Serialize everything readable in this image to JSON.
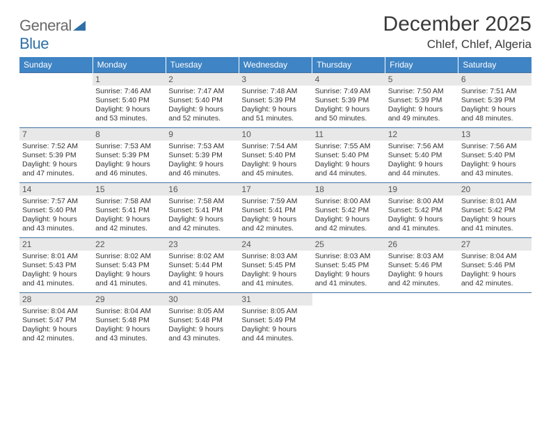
{
  "brand": {
    "name_a": "General",
    "name_b": "Blue"
  },
  "title": "December 2025",
  "location": "Chlef, Chlef, Algeria",
  "colors": {
    "header_bg": "#3f84c4",
    "header_text": "#ffffff",
    "daynum_bg": "#e8e8e8",
    "rule": "#3f6fa0",
    "text": "#333333",
    "logo_gray": "#6a6a6a",
    "logo_blue": "#2f6fa7"
  },
  "weekdays": [
    "Sunday",
    "Monday",
    "Tuesday",
    "Wednesday",
    "Thursday",
    "Friday",
    "Saturday"
  ],
  "weeks": [
    [
      {
        "n": "",
        "sr": "",
        "ss": "",
        "dl": ""
      },
      {
        "n": "1",
        "sr": "Sunrise: 7:46 AM",
        "ss": "Sunset: 5:40 PM",
        "dl": "Daylight: 9 hours and 53 minutes."
      },
      {
        "n": "2",
        "sr": "Sunrise: 7:47 AM",
        "ss": "Sunset: 5:40 PM",
        "dl": "Daylight: 9 hours and 52 minutes."
      },
      {
        "n": "3",
        "sr": "Sunrise: 7:48 AM",
        "ss": "Sunset: 5:39 PM",
        "dl": "Daylight: 9 hours and 51 minutes."
      },
      {
        "n": "4",
        "sr": "Sunrise: 7:49 AM",
        "ss": "Sunset: 5:39 PM",
        "dl": "Daylight: 9 hours and 50 minutes."
      },
      {
        "n": "5",
        "sr": "Sunrise: 7:50 AM",
        "ss": "Sunset: 5:39 PM",
        "dl": "Daylight: 9 hours and 49 minutes."
      },
      {
        "n": "6",
        "sr": "Sunrise: 7:51 AM",
        "ss": "Sunset: 5:39 PM",
        "dl": "Daylight: 9 hours and 48 minutes."
      }
    ],
    [
      {
        "n": "7",
        "sr": "Sunrise: 7:52 AM",
        "ss": "Sunset: 5:39 PM",
        "dl": "Daylight: 9 hours and 47 minutes."
      },
      {
        "n": "8",
        "sr": "Sunrise: 7:53 AM",
        "ss": "Sunset: 5:39 PM",
        "dl": "Daylight: 9 hours and 46 minutes."
      },
      {
        "n": "9",
        "sr": "Sunrise: 7:53 AM",
        "ss": "Sunset: 5:39 PM",
        "dl": "Daylight: 9 hours and 46 minutes."
      },
      {
        "n": "10",
        "sr": "Sunrise: 7:54 AM",
        "ss": "Sunset: 5:40 PM",
        "dl": "Daylight: 9 hours and 45 minutes."
      },
      {
        "n": "11",
        "sr": "Sunrise: 7:55 AM",
        "ss": "Sunset: 5:40 PM",
        "dl": "Daylight: 9 hours and 44 minutes."
      },
      {
        "n": "12",
        "sr": "Sunrise: 7:56 AM",
        "ss": "Sunset: 5:40 PM",
        "dl": "Daylight: 9 hours and 44 minutes."
      },
      {
        "n": "13",
        "sr": "Sunrise: 7:56 AM",
        "ss": "Sunset: 5:40 PM",
        "dl": "Daylight: 9 hours and 43 minutes."
      }
    ],
    [
      {
        "n": "14",
        "sr": "Sunrise: 7:57 AM",
        "ss": "Sunset: 5:40 PM",
        "dl": "Daylight: 9 hours and 43 minutes."
      },
      {
        "n": "15",
        "sr": "Sunrise: 7:58 AM",
        "ss": "Sunset: 5:41 PM",
        "dl": "Daylight: 9 hours and 42 minutes."
      },
      {
        "n": "16",
        "sr": "Sunrise: 7:58 AM",
        "ss": "Sunset: 5:41 PM",
        "dl": "Daylight: 9 hours and 42 minutes."
      },
      {
        "n": "17",
        "sr": "Sunrise: 7:59 AM",
        "ss": "Sunset: 5:41 PM",
        "dl": "Daylight: 9 hours and 42 minutes."
      },
      {
        "n": "18",
        "sr": "Sunrise: 8:00 AM",
        "ss": "Sunset: 5:42 PM",
        "dl": "Daylight: 9 hours and 42 minutes."
      },
      {
        "n": "19",
        "sr": "Sunrise: 8:00 AM",
        "ss": "Sunset: 5:42 PM",
        "dl": "Daylight: 9 hours and 41 minutes."
      },
      {
        "n": "20",
        "sr": "Sunrise: 8:01 AM",
        "ss": "Sunset: 5:42 PM",
        "dl": "Daylight: 9 hours and 41 minutes."
      }
    ],
    [
      {
        "n": "21",
        "sr": "Sunrise: 8:01 AM",
        "ss": "Sunset: 5:43 PM",
        "dl": "Daylight: 9 hours and 41 minutes."
      },
      {
        "n": "22",
        "sr": "Sunrise: 8:02 AM",
        "ss": "Sunset: 5:43 PM",
        "dl": "Daylight: 9 hours and 41 minutes."
      },
      {
        "n": "23",
        "sr": "Sunrise: 8:02 AM",
        "ss": "Sunset: 5:44 PM",
        "dl": "Daylight: 9 hours and 41 minutes."
      },
      {
        "n": "24",
        "sr": "Sunrise: 8:03 AM",
        "ss": "Sunset: 5:45 PM",
        "dl": "Daylight: 9 hours and 41 minutes."
      },
      {
        "n": "25",
        "sr": "Sunrise: 8:03 AM",
        "ss": "Sunset: 5:45 PM",
        "dl": "Daylight: 9 hours and 41 minutes."
      },
      {
        "n": "26",
        "sr": "Sunrise: 8:03 AM",
        "ss": "Sunset: 5:46 PM",
        "dl": "Daylight: 9 hours and 42 minutes."
      },
      {
        "n": "27",
        "sr": "Sunrise: 8:04 AM",
        "ss": "Sunset: 5:46 PM",
        "dl": "Daylight: 9 hours and 42 minutes."
      }
    ],
    [
      {
        "n": "28",
        "sr": "Sunrise: 8:04 AM",
        "ss": "Sunset: 5:47 PM",
        "dl": "Daylight: 9 hours and 42 minutes."
      },
      {
        "n": "29",
        "sr": "Sunrise: 8:04 AM",
        "ss": "Sunset: 5:48 PM",
        "dl": "Daylight: 9 hours and 43 minutes."
      },
      {
        "n": "30",
        "sr": "Sunrise: 8:05 AM",
        "ss": "Sunset: 5:48 PM",
        "dl": "Daylight: 9 hours and 43 minutes."
      },
      {
        "n": "31",
        "sr": "Sunrise: 8:05 AM",
        "ss": "Sunset: 5:49 PM",
        "dl": "Daylight: 9 hours and 44 minutes."
      },
      {
        "n": "",
        "sr": "",
        "ss": "",
        "dl": ""
      },
      {
        "n": "",
        "sr": "",
        "ss": "",
        "dl": ""
      },
      {
        "n": "",
        "sr": "",
        "ss": "",
        "dl": ""
      }
    ]
  ]
}
